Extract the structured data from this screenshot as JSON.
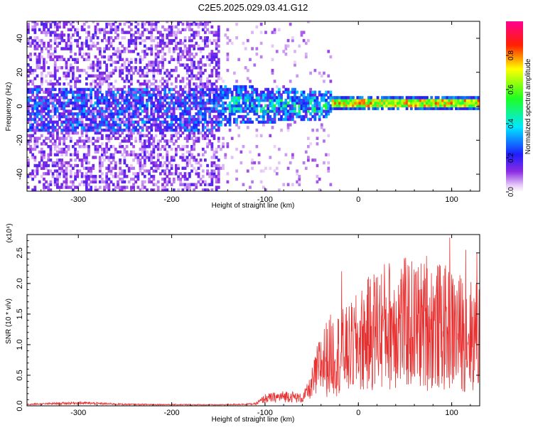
{
  "title": "C2E5.2025.029.03.41.G12",
  "chart_data": [
    {
      "type": "heatmap",
      "xlabel": "Height of straight line (km)",
      "ylabel": "Frequency (Hz)",
      "xlim": [
        -355,
        130
      ],
      "ylim": [
        -50,
        50
      ],
      "x_ticks": [
        -300,
        -200,
        -100,
        0,
        100
      ],
      "x_tick_labels": [
        "-300",
        "-200",
        "-100",
        "0",
        "100"
      ],
      "y_ticks": [
        -40,
        -20,
        0,
        20,
        40
      ],
      "y_tick_labels": [
        "-40",
        "-20",
        "0",
        "20",
        "40"
      ],
      "colorbar": {
        "label": "Normalized spectral amplitude",
        "range": [
          0,
          1
        ],
        "ticks": [
          0.0,
          0.2,
          0.4,
          0.6,
          0.8
        ],
        "tick_labels": [
          "0.0",
          "0.2",
          "0.4",
          "0.6",
          "0.8"
        ],
        "colormap": "rainbow (white-violet-blue-cyan-green-yellow-red-magenta)"
      },
      "regions": [
        {
          "x_range": [
            -355,
            -150
          ],
          "freq_range": [
            -50,
            50
          ],
          "amplitude": "low (0.05-0.2), scattered noise",
          "core_freq_range": [
            -15,
            10
          ],
          "core_amplitude": 0.25
        },
        {
          "x_range": [
            -150,
            -30
          ],
          "freq_range": [
            -12,
            12
          ],
          "amplitude": "moderate (0.2-0.55), clustered",
          "core_freq_range": [
            -5,
            5
          ]
        },
        {
          "x_range": [
            -30,
            130
          ],
          "freq_range": [
            -3,
            5
          ],
          "amplitude": "high (0.5-0.9), narrow band near 1 Hz",
          "band_center": 1
        }
      ],
      "grid": false
    },
    {
      "type": "line",
      "series": [
        {
          "color": "#e83030"
        }
      ],
      "xlabel": "Height of straight line (km)",
      "ylabel": "SNR (10 * v/v)",
      "y_multiplier": "(x10⁴)",
      "xlim": [
        -355,
        130
      ],
      "ylim": [
        0,
        2.8
      ],
      "x_ticks": [
        -300,
        -200,
        -100,
        0,
        100
      ],
      "x_tick_labels": [
        "-300",
        "-200",
        "-100",
        "0",
        "100"
      ],
      "y_ticks": [
        0.0,
        0.5,
        1.0,
        1.5,
        2.0,
        2.5
      ],
      "y_tick_labels": [
        "0.0",
        "0.5",
        "1.0",
        "1.5",
        "2.0",
        "2.5"
      ],
      "envelope": [
        {
          "x": -355,
          "y": 0.03
        },
        {
          "x": -300,
          "y": 0.06
        },
        {
          "x": -250,
          "y": 0.03
        },
        {
          "x": -150,
          "y": 0.02
        },
        {
          "x": -110,
          "y": 0.04
        },
        {
          "x": -100,
          "y": 0.15
        },
        {
          "x": -75,
          "y": 0.2
        },
        {
          "x": -60,
          "y": 0.15
        },
        {
          "x": -50,
          "y": 0.4
        },
        {
          "x": -40,
          "y": 0.85
        },
        {
          "x": -30,
          "y": 1.0
        },
        {
          "x": -20,
          "y": 1.05
        },
        {
          "x": -10,
          "y": 1.1
        },
        {
          "x": 0,
          "y": 1.25
        },
        {
          "x": 10,
          "y": 1.4
        },
        {
          "x": 20,
          "y": 1.55
        },
        {
          "x": 40,
          "y": 1.65
        },
        {
          "x": 60,
          "y": 1.6
        },
        {
          "x": 80,
          "y": 1.6
        },
        {
          "x": 100,
          "y": 1.5
        },
        {
          "x": 120,
          "y": 1.4
        },
        {
          "x": 130,
          "y": 1.35
        }
      ],
      "peaks": [
        {
          "x": -18,
          "y": 2.2
        },
        {
          "x": 53,
          "y": 2.3
        },
        {
          "x": 73,
          "y": 2.45
        },
        {
          "x": 98,
          "y": 2.75
        },
        {
          "x": 115,
          "y": 2.55
        },
        {
          "x": 127,
          "y": 2.5
        }
      ],
      "grid": false
    }
  ]
}
